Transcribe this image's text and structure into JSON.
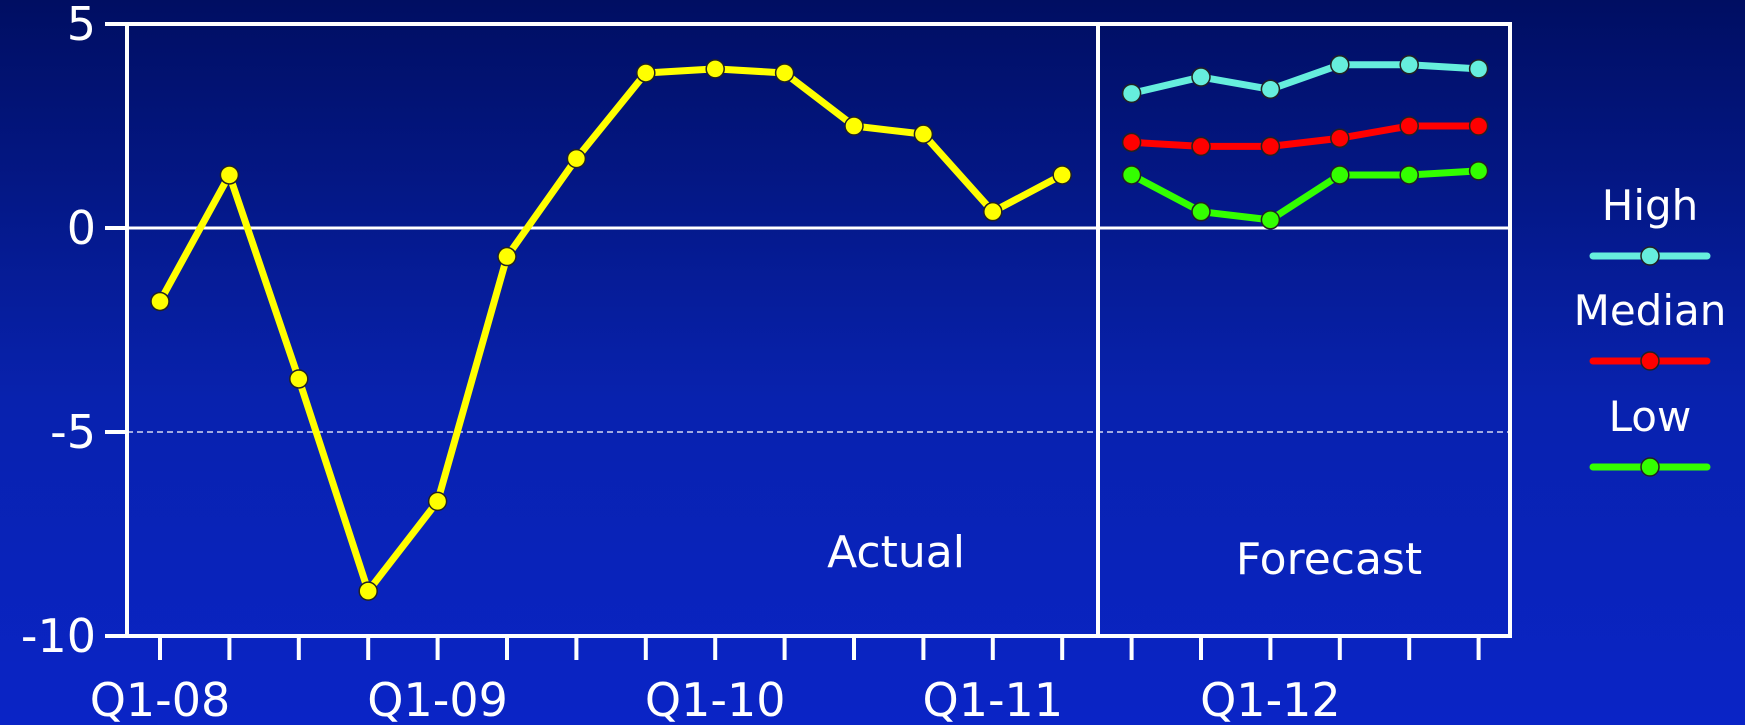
{
  "chart_data": {
    "type": "line",
    "title": "",
    "xlabel": "",
    "ylabel": "",
    "ylim": [
      -10,
      5
    ],
    "yticks": [
      5,
      0,
      -5,
      -10
    ],
    "yticks_labels": [
      "5",
      "0",
      "-5",
      "-10"
    ],
    "x_tick_labels": [
      "Q1-08",
      "Q1-09",
      "Q1-10",
      "Q1-11",
      "Q1-12"
    ],
    "grid": {
      "zero_line": true,
      "dashed_at": -5
    },
    "legend": {
      "placement": "right",
      "entries": [
        "High",
        "Median",
        "Low"
      ]
    },
    "annotations": {
      "actual": "Actual",
      "forecast": "Forecast"
    },
    "series": [
      {
        "key": "actual",
        "color": "#ffff00",
        "quarters": [
          "Q1-08",
          "Q2-08",
          "Q3-08",
          "Q4-08",
          "Q1-09",
          "Q2-09",
          "Q3-09",
          "Q4-09",
          "Q1-10",
          "Q2-10",
          "Q3-10",
          "Q4-10",
          "Q1-11",
          "Q2-11"
        ],
        "values": [
          -1.8,
          1.3,
          -3.7,
          -8.9,
          -6.7,
          -0.7,
          1.7,
          3.8,
          3.9,
          3.8,
          2.5,
          2.3,
          0.4,
          1.3
        ]
      },
      {
        "key": "high",
        "name": "High",
        "color": "#66eedd",
        "quarters": [
          "Q3-11",
          "Q4-11",
          "Q1-12",
          "Q2-12",
          "Q3-12",
          "Q4-12"
        ],
        "values": [
          3.3,
          3.7,
          3.4,
          4.0,
          4.0,
          3.9
        ]
      },
      {
        "key": "median",
        "name": "Median",
        "color": "#ff0000",
        "quarters": [
          "Q3-11",
          "Q4-11",
          "Q1-12",
          "Q2-12",
          "Q3-12",
          "Q4-12"
        ],
        "values": [
          2.1,
          2.0,
          2.0,
          2.2,
          2.5,
          2.5
        ]
      },
      {
        "key": "low",
        "name": "Low",
        "color": "#33ff00",
        "quarters": [
          "Q3-11",
          "Q4-11",
          "Q1-12",
          "Q2-12",
          "Q3-12",
          "Q4-12"
        ],
        "values": [
          1.3,
          0.4,
          0.2,
          1.3,
          1.3,
          1.4
        ]
      }
    ]
  }
}
